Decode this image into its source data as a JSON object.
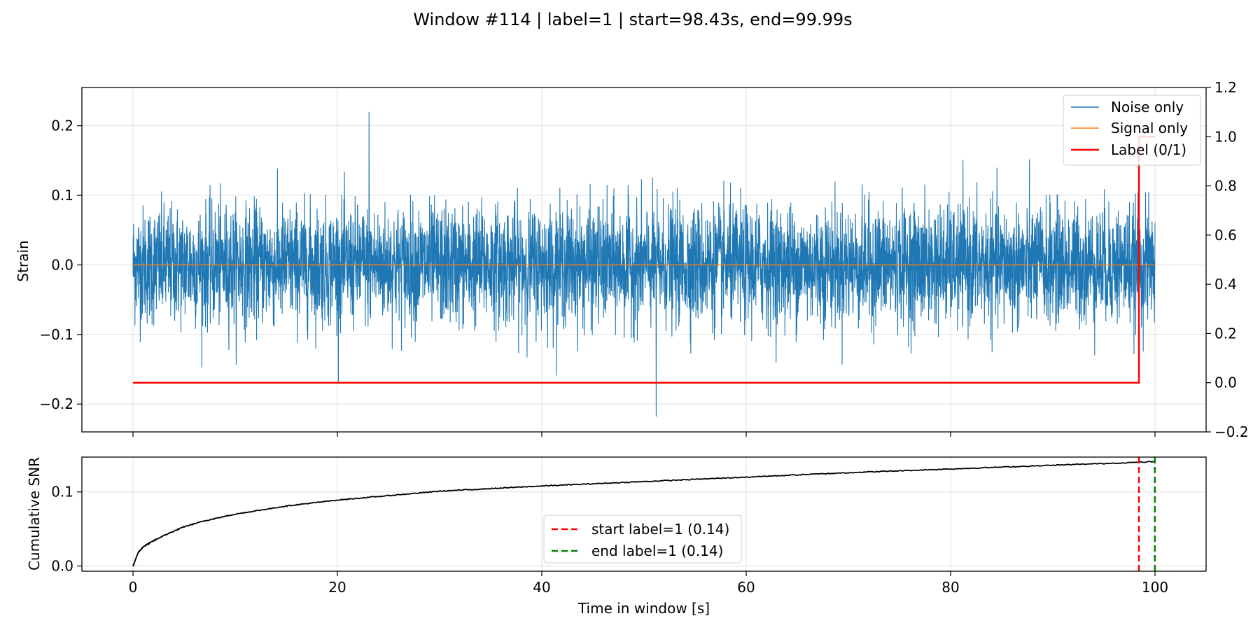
{
  "chart_data": [
    {
      "type": "line",
      "title": "Window #114 | label=1 | start=98.43s, end=99.99s",
      "xlabel": "",
      "ylabel": "Strain",
      "y2label": "",
      "xlim": [
        -5,
        105
      ],
      "ylim": [
        -0.24,
        0.255
      ],
      "y2lim": [
        -0.2,
        1.2
      ],
      "xticks": [
        0,
        20,
        40,
        60,
        80,
        100
      ],
      "yticks": [
        -0.2,
        -0.1,
        0.0,
        0.1,
        0.2
      ],
      "yticklabels": [
        "−0.2",
        "−0.1",
        "0.0",
        "0.1",
        "0.2"
      ],
      "y2ticks": [
        -0.2,
        0.0,
        0.2,
        0.4,
        0.6,
        0.8,
        1.0,
        1.2
      ],
      "y2ticklabels": [
        "−0.2",
        "0.0",
        "0.2",
        "0.4",
        "0.6",
        "0.8",
        "1.0",
        "1.2"
      ],
      "grid": true,
      "legend_position": "top-right",
      "series": [
        {
          "name": "Noise only",
          "color": "#1f77b4",
          "kind": "noise",
          "x_range": [
            0,
            100
          ],
          "typical_range": [
            -0.11,
            0.11
          ],
          "max": 0.22,
          "max_at": 23.1,
          "min": -0.218,
          "min_at": 51.2
        },
        {
          "name": "Signal only",
          "color": "#ff7f0e",
          "x": [
            0,
            100
          ],
          "y": [
            0.0,
            0.0
          ]
        },
        {
          "name": "Label (0/1)",
          "color": "#ff0000",
          "axis": "right",
          "x": [
            0,
            98.43,
            98.43,
            100
          ],
          "y": [
            0,
            0,
            1,
            1
          ]
        }
      ]
    },
    {
      "type": "line",
      "title": "",
      "xlabel": "Time in window [s]",
      "ylabel": "Cumulative SNR",
      "xlim": [
        -5,
        105
      ],
      "ylim": [
        -0.007,
        0.147
      ],
      "xticks": [
        0,
        20,
        40,
        60,
        80,
        100
      ],
      "xticklabels": [
        "0",
        "20",
        "40",
        "60",
        "80",
        "100"
      ],
      "yticks": [
        0.0,
        0.1
      ],
      "yticklabels": [
        "0.0",
        "0.1"
      ],
      "grid": true,
      "legend_position": "lower-center",
      "series": [
        {
          "name": "",
          "color": "#000000",
          "x": [
            0,
            0.5,
            1,
            2,
            3,
            5,
            7,
            10,
            15,
            20,
            30,
            40,
            50,
            60,
            70,
            80,
            90,
            98.43,
            100
          ],
          "y": [
            0.0,
            0.018,
            0.026,
            0.034,
            0.041,
            0.053,
            0.061,
            0.07,
            0.081,
            0.089,
            0.101,
            0.108,
            0.114,
            0.12,
            0.126,
            0.131,
            0.136,
            0.14,
            0.141
          ]
        },
        {
          "name": "start label=1 (0.14)",
          "color": "#ff0000",
          "dashed": true,
          "x": [
            98.43,
            98.43
          ],
          "y": [
            -0.007,
            0.147
          ]
        },
        {
          "name": "end label=1 (0.14)",
          "color": "#008000",
          "dashed": true,
          "x": [
            99.99,
            99.99
          ],
          "y": [
            -0.007,
            0.147
          ]
        }
      ]
    }
  ]
}
